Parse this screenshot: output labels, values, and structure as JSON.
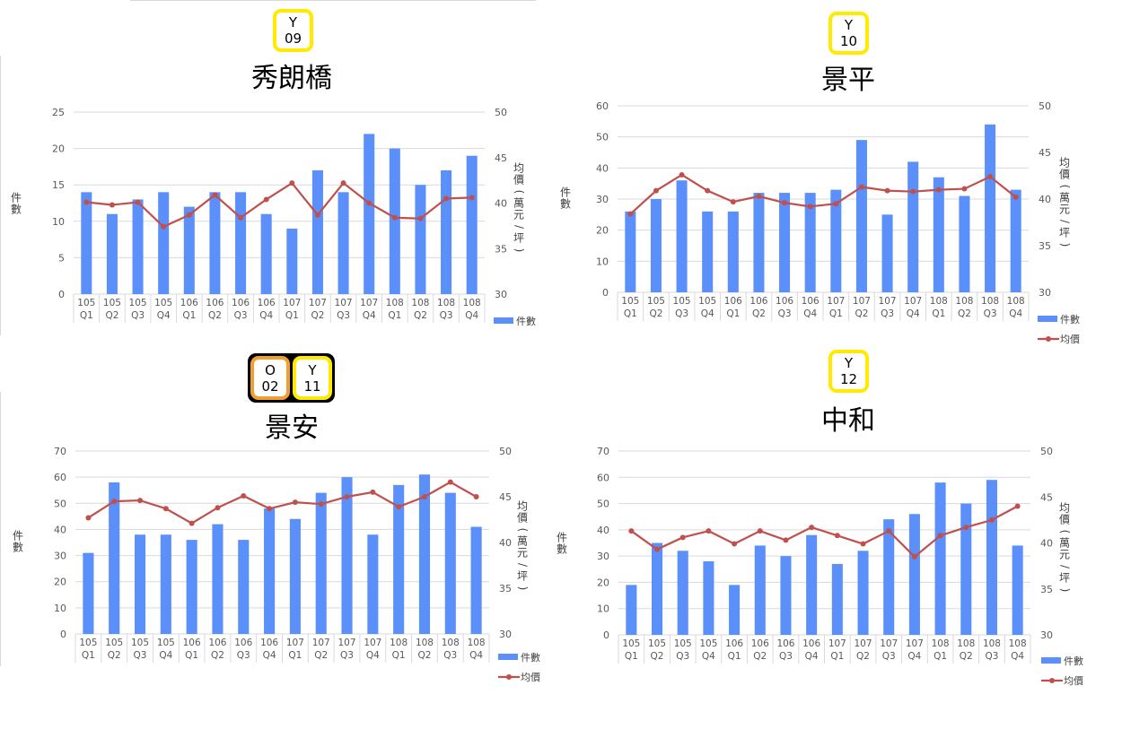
{
  "colors": {
    "bar": "#5b8ff9",
    "line": "#c0504d",
    "grid": "#d9d9d9",
    "axisText": "#595959"
  },
  "legend": {
    "count": "件數",
    "price": "均價"
  },
  "axis_labels": {
    "left": "件數",
    "right": "均價(萬元/坪)"
  },
  "chart_data": [
    {
      "type": "bar+line",
      "title": "秀朗橋",
      "badges": [
        {
          "letter": "Y",
          "num": "09",
          "color": "yellow"
        }
      ],
      "categories_year": [
        "105",
        "105",
        "105",
        "105",
        "106",
        "106",
        "106",
        "106",
        "107",
        "107",
        "107",
        "107",
        "108",
        "108",
        "108",
        "108"
      ],
      "categories_q": [
        "Q1",
        "Q2",
        "Q3",
        "Q4",
        "Q1",
        "Q2",
        "Q3",
        "Q4",
        "Q1",
        "Q2",
        "Q3",
        "Q4",
        "Q1",
        "Q2",
        "Q3",
        "Q4"
      ],
      "series": [
        {
          "name": "件數",
          "axis": "left",
          "values": [
            14,
            11,
            13,
            14,
            12,
            14,
            14,
            11,
            9,
            17,
            14,
            22,
            20,
            15,
            17,
            19
          ]
        },
        {
          "name": "均價",
          "axis": "right",
          "values": [
            40.1,
            39.8,
            40.1,
            37.4,
            38.7,
            40.9,
            38.4,
            40.4,
            42.2,
            38.7,
            42.2,
            40.0,
            38.4,
            38.3,
            40.5,
            40.6
          ]
        }
      ],
      "yleft": {
        "min": 0,
        "max": 25,
        "ticks": [
          0,
          5,
          10,
          15,
          20,
          25
        ]
      },
      "yright": {
        "min": 30,
        "max": 50,
        "ticks": [
          30,
          35,
          40,
          45,
          50
        ]
      },
      "legend_items": [
        "count"
      ]
    },
    {
      "type": "bar+line",
      "title": "景平",
      "badges": [
        {
          "letter": "Y",
          "num": "10",
          "color": "yellow"
        }
      ],
      "categories_year": [
        "105",
        "105",
        "105",
        "105",
        "106",
        "106",
        "106",
        "106",
        "107",
        "107",
        "107",
        "107",
        "108",
        "108",
        "108",
        "108"
      ],
      "categories_q": [
        "Q1",
        "Q2",
        "Q3",
        "Q4",
        "Q1",
        "Q2",
        "Q3",
        "Q4",
        "Q1",
        "Q2",
        "Q3",
        "Q4",
        "Q1",
        "Q2",
        "Q3",
        "Q4"
      ],
      "series": [
        {
          "name": "件數",
          "axis": "left",
          "values": [
            26,
            30,
            36,
            26,
            26,
            32,
            32,
            32,
            33,
            49,
            25,
            42,
            37,
            31,
            54,
            33
          ]
        },
        {
          "name": "均價",
          "axis": "right",
          "values": [
            38.4,
            40.9,
            42.6,
            40.9,
            39.7,
            40.3,
            39.6,
            39.2,
            39.5,
            41.3,
            40.9,
            40.8,
            41.0,
            41.1,
            42.4,
            40.2
          ]
        }
      ],
      "yleft": {
        "min": 0,
        "max": 60,
        "ticks": [
          0,
          10,
          20,
          30,
          40,
          50,
          60
        ]
      },
      "yright": {
        "min": 30,
        "max": 50,
        "ticks": [
          30,
          35,
          40,
          45,
          50
        ]
      },
      "legend_items": [
        "count",
        "price"
      ]
    },
    {
      "type": "bar+line",
      "title": "景安",
      "badges": [
        {
          "letter": "O",
          "num": "02",
          "color": "orange"
        },
        {
          "letter": "Y",
          "num": "11",
          "color": "yellow"
        }
      ],
      "categories_year": [
        "105",
        "105",
        "105",
        "105",
        "106",
        "106",
        "106",
        "106",
        "107",
        "107",
        "107",
        "107",
        "108",
        "108",
        "108",
        "108"
      ],
      "categories_q": [
        "Q1",
        "Q2",
        "Q3",
        "Q4",
        "Q1",
        "Q2",
        "Q3",
        "Q4",
        "Q1",
        "Q2",
        "Q3",
        "Q4",
        "Q1",
        "Q2",
        "Q3",
        "Q4"
      ],
      "series": [
        {
          "name": "件數",
          "axis": "left",
          "values": [
            31,
            58,
            38,
            38,
            36,
            42,
            36,
            48,
            44,
            54,
            60,
            38,
            57,
            61,
            54,
            41
          ]
        },
        {
          "name": "均價",
          "axis": "right",
          "values": [
            42.7,
            44.5,
            44.6,
            43.7,
            42.1,
            43.8,
            45.1,
            43.7,
            44.4,
            44.2,
            45.0,
            45.5,
            43.9,
            45.0,
            46.6,
            45.0
          ]
        }
      ],
      "yleft": {
        "min": 0,
        "max": 70,
        "ticks": [
          0,
          10,
          20,
          30,
          40,
          50,
          60,
          70
        ]
      },
      "yright": {
        "min": 30,
        "max": 50,
        "ticks": [
          30,
          35,
          40,
          45,
          50
        ]
      },
      "legend_items": [
        "count",
        "price"
      ]
    },
    {
      "type": "bar+line",
      "title": "中和",
      "badges": [
        {
          "letter": "Y",
          "num": "12",
          "color": "yellow"
        }
      ],
      "categories_year": [
        "105",
        "105",
        "105",
        "105",
        "106",
        "106",
        "106",
        "106",
        "107",
        "107",
        "107",
        "107",
        "108",
        "108",
        "108",
        "108"
      ],
      "categories_q": [
        "Q1",
        "Q2",
        "Q3",
        "Q4",
        "Q1",
        "Q2",
        "Q3",
        "Q4",
        "Q1",
        "Q2",
        "Q3",
        "Q4",
        "Q1",
        "Q2",
        "Q3",
        "Q4"
      ],
      "series": [
        {
          "name": "件數",
          "axis": "left",
          "values": [
            19,
            35,
            32,
            28,
            19,
            34,
            30,
            38,
            27,
            32,
            44,
            46,
            58,
            50,
            59,
            34
          ]
        },
        {
          "name": "均價",
          "axis": "right",
          "values": [
            41.3,
            39.3,
            40.6,
            41.3,
            39.9,
            41.3,
            40.3,
            41.7,
            40.8,
            39.9,
            41.3,
            38.5,
            40.8,
            41.7,
            42.5,
            44.0
          ]
        }
      ],
      "yleft": {
        "min": 0,
        "max": 70,
        "ticks": [
          0,
          10,
          20,
          30,
          40,
          50,
          60,
          70
        ]
      },
      "yright": {
        "min": 30,
        "max": 50,
        "ticks": [
          30,
          35,
          40,
          45,
          50
        ]
      },
      "legend_items": [
        "count",
        "price"
      ]
    }
  ]
}
